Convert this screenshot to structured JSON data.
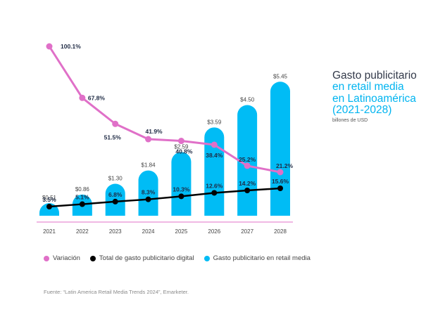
{
  "chart_data": {
    "type": "bar",
    "title": "Gasto publicitario en retail media en Latinoamérica (2021-2028)",
    "title_lines": [
      "Gasto publicitario",
      "en retail media",
      "en Latinoamérica",
      "(2021-2028)"
    ],
    "subtitle": "billones de USD",
    "categories": [
      "2021",
      "2022",
      "2023",
      "2024",
      "2025",
      "2026",
      "2027",
      "2028"
    ],
    "series": [
      {
        "name": "Gasto publicitario en retail media",
        "kind": "bar",
        "color": "#00bcf5",
        "values": [
          0.51,
          0.86,
          1.3,
          1.84,
          2.59,
          3.59,
          4.5,
          5.45
        ],
        "labels": [
          "$0.51",
          "$0.86",
          "$1.30",
          "$1.84",
          "$2.59",
          "$3.59",
          "$4.50",
          "$5.45"
        ]
      },
      {
        "name": "Variación",
        "kind": "line",
        "color": "#e070c8",
        "values": [
          100.1,
          67.8,
          51.5,
          41.9,
          40.8,
          38.4,
          25.2,
          21.2
        ],
        "labels": [
          "100.1%",
          "67.8%",
          "51.5%",
          "41.9%",
          "40.8%",
          "38.4%",
          "25.2%",
          "21.2%"
        ]
      },
      {
        "name": "Total de gasto publicitario digital",
        "kind": "line",
        "color": "#000000",
        "values": [
          3.5,
          5.1,
          6.8,
          8.3,
          10.3,
          12.6,
          14.2,
          15.6
        ],
        "labels": [
          "3.5%",
          "5.1%",
          "6.8%",
          "8.3%",
          "10.3%",
          "12.6%",
          "14.2%",
          "15.6%"
        ]
      }
    ],
    "xlabel": "",
    "ylabel": "",
    "grid": false,
    "legend_position": "bottom-left",
    "source": "Fuente: “Latin America Retail Media Trends 2024”, Emarketer."
  },
  "legend": [
    {
      "label": "Variación",
      "color": "#e070c8"
    },
    {
      "label": "Total de gasto publicitario digital",
      "color": "#000000"
    },
    {
      "label": "Gasto publicitario en retail media",
      "color": "#00bcf5"
    }
  ],
  "axis_line_color": "#e070c8",
  "label_color": "#1e2a44"
}
